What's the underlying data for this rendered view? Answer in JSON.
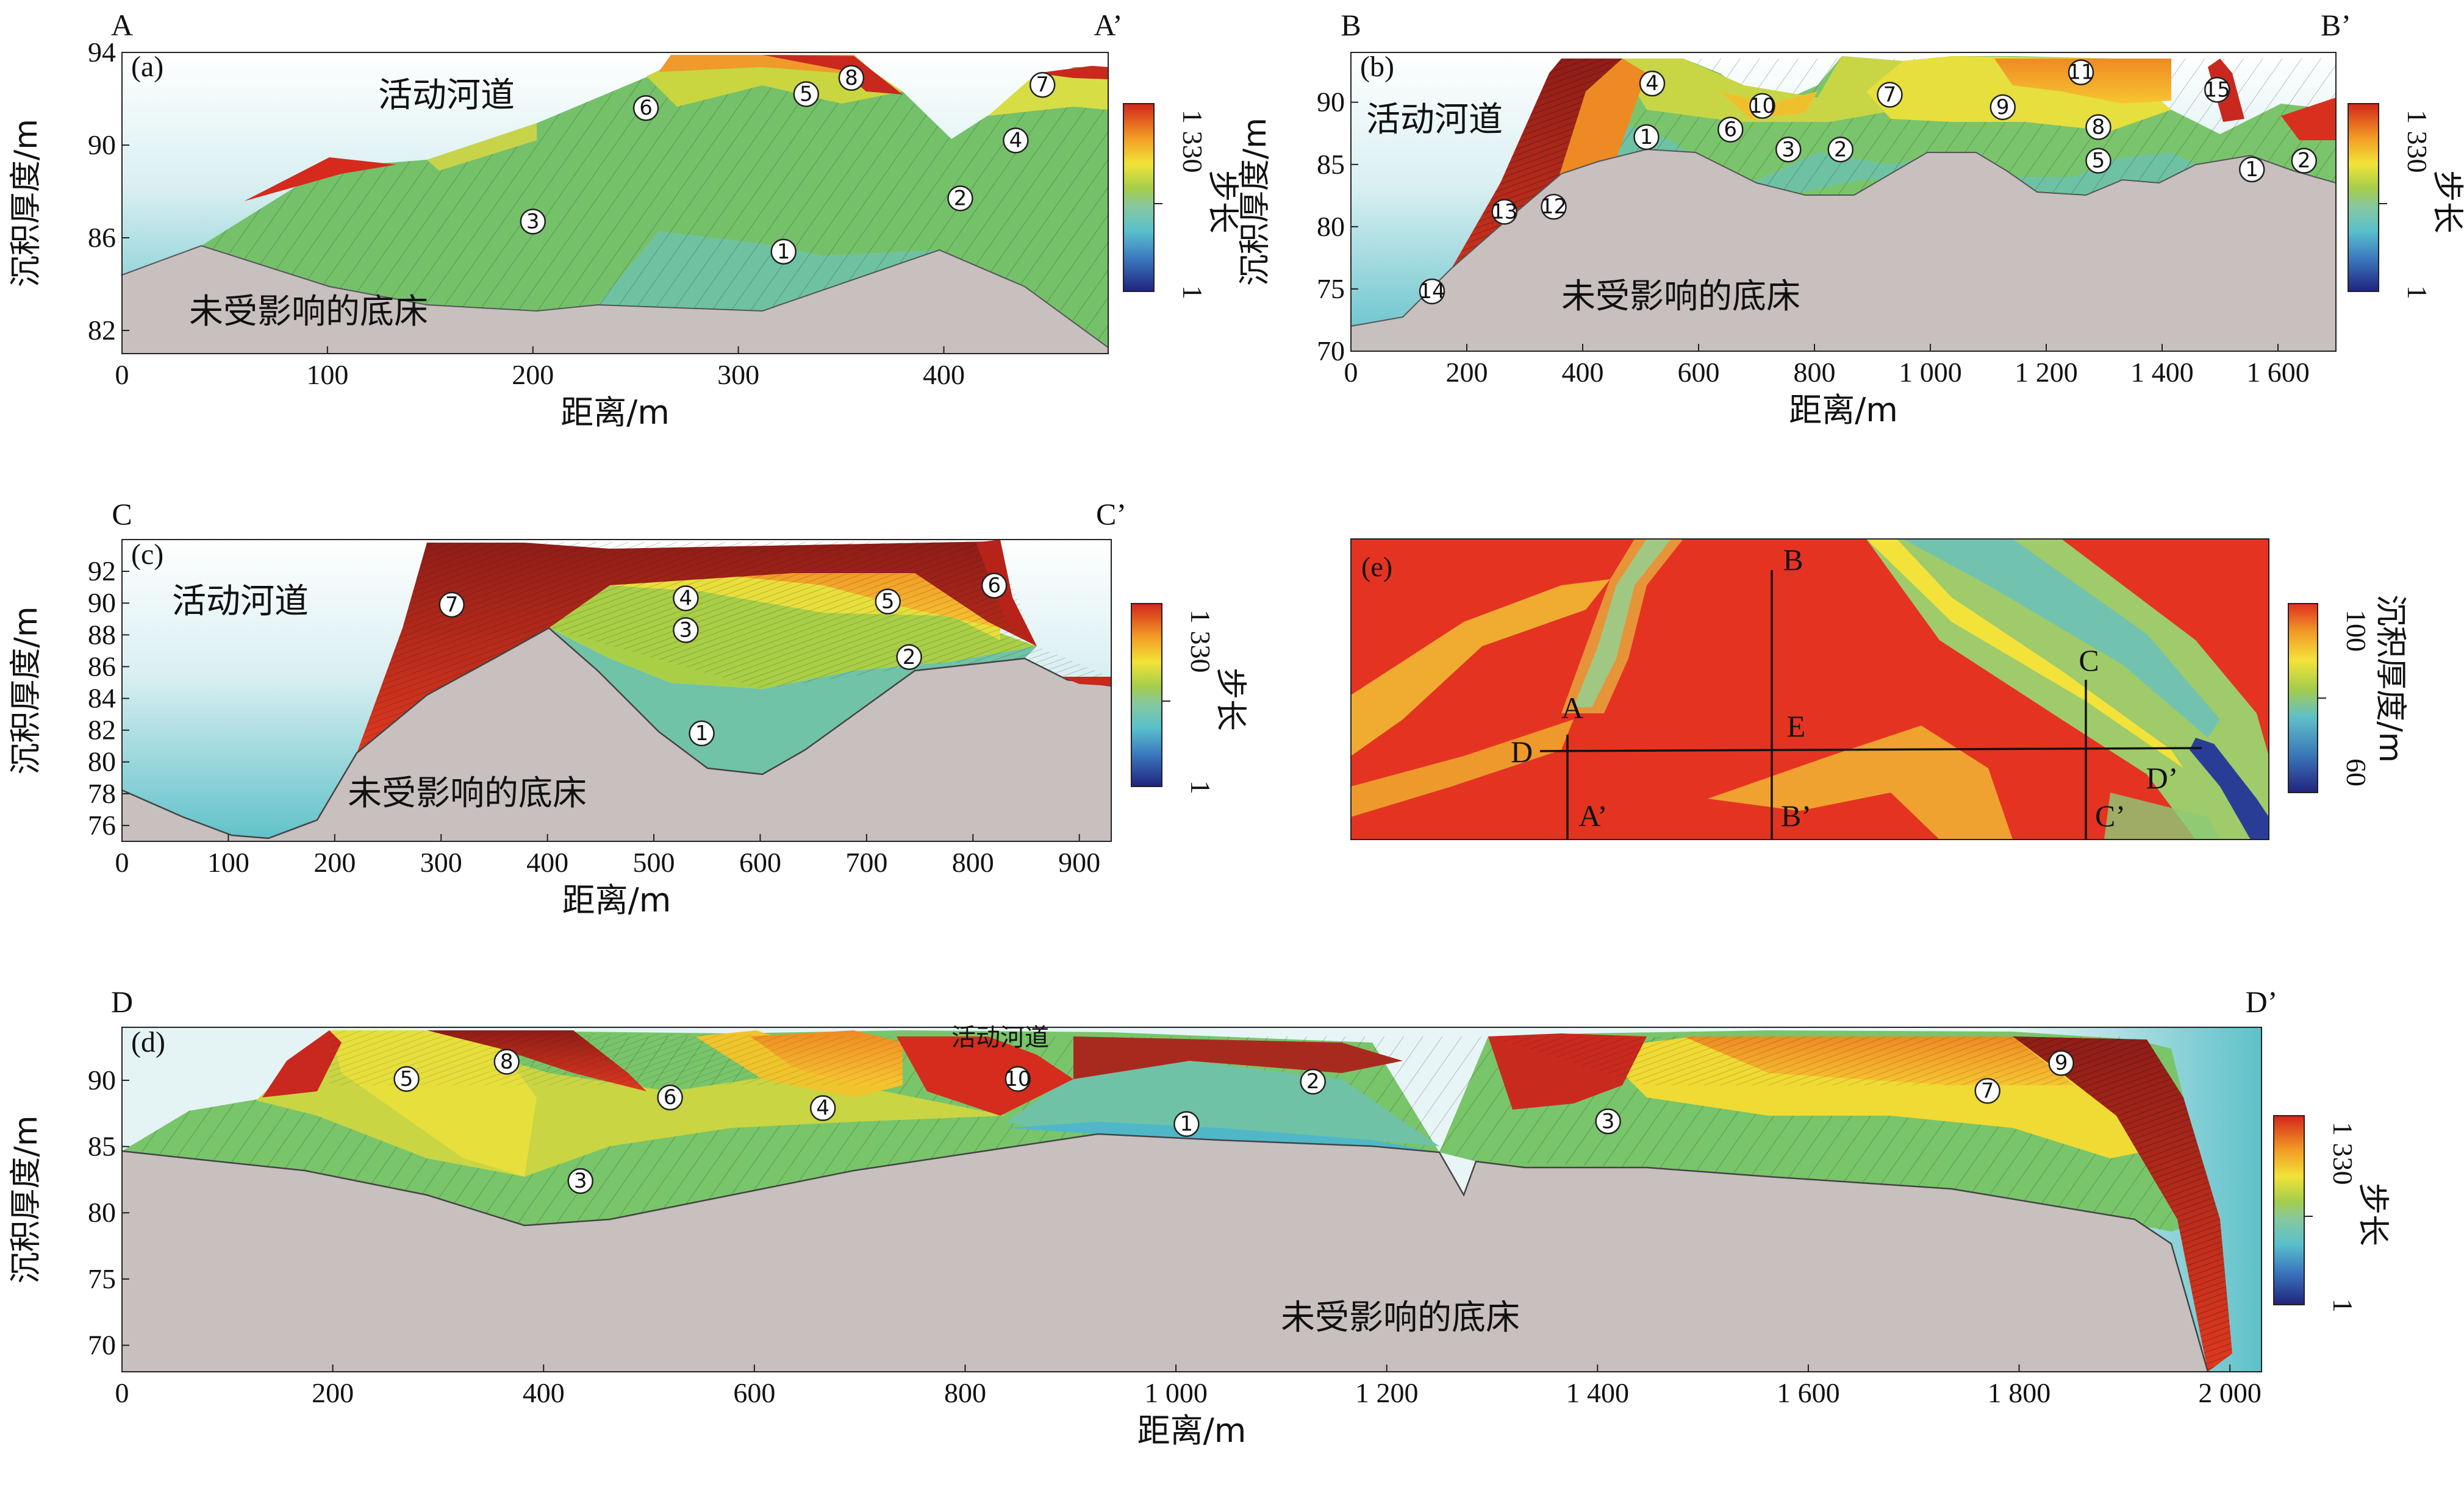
{
  "panels": {
    "a": {
      "tag": "(a)",
      "end_left": "A",
      "end_right": "A’",
      "ylabel": "沉积厚度/m",
      "xlabel": "距离/m",
      "label_channel": "活动河道",
      "label_bed": "未受影响的底床",
      "xlim": [
        0,
        480
      ],
      "ylim": [
        81,
        94
      ],
      "xticks": [
        "0",
        "100",
        "200",
        "300",
        "400"
      ],
      "xtick_values": [
        0,
        100,
        200,
        300,
        400
      ],
      "yticks": [
        "82",
        "86",
        "90",
        "94"
      ],
      "ytick_values": [
        82,
        86,
        90,
        94
      ],
      "markers": [
        {
          "n": "①",
          "x": 322,
          "y": 85.4
        },
        {
          "n": "②",
          "x": 408,
          "y": 87.7
        },
        {
          "n": "③",
          "x": 200,
          "y": 86.7
        },
        {
          "n": "④",
          "x": 435,
          "y": 90.2
        },
        {
          "n": "⑤",
          "x": 333,
          "y": 92.2
        },
        {
          "n": "⑥",
          "x": 255,
          "y": 91.6
        },
        {
          "n": "⑦",
          "x": 448,
          "y": 92.6
        },
        {
          "n": "⑧",
          "x": 355,
          "y": 92.9
        }
      ],
      "colorbar": {
        "top": "1 330",
        "bottom": "1",
        "label": "步长"
      }
    },
    "b": {
      "tag": "(b)",
      "end_left": "B",
      "end_right": "B’",
      "ylabel": "沉积厚度/m",
      "xlabel": "距离/m",
      "label_channel": "活动河道",
      "label_bed": "未受影响的底床",
      "xlim": [
        0,
        1700
      ],
      "ylim": [
        70,
        94
      ],
      "xticks": [
        "0",
        "200",
        "400",
        "600",
        "800",
        "1 000",
        "1 200",
        "1 400",
        "1 600"
      ],
      "xtick_values": [
        0,
        200,
        400,
        600,
        800,
        1000,
        1200,
        1400,
        1600
      ],
      "yticks": [
        "70",
        "75",
        "80",
        "85",
        "90"
      ],
      "ytick_values": [
        70,
        75,
        80,
        85,
        90
      ],
      "markers": [
        {
          "n": "①",
          "x": 510,
          "y": 87.2
        },
        {
          "n": "②",
          "x": 845,
          "y": 86.2
        },
        {
          "n": "③",
          "x": 755,
          "y": 86.2
        },
        {
          "n": "④",
          "x": 520,
          "y": 91.5
        },
        {
          "n": "⑤",
          "x": 1290,
          "y": 85.3
        },
        {
          "n": "⑥",
          "x": 655,
          "y": 87.8
        },
        {
          "n": "⑦",
          "x": 930,
          "y": 90.6
        },
        {
          "n": "⑧",
          "x": 1290,
          "y": 88.0
        },
        {
          "n": "⑨",
          "x": 1125,
          "y": 89.6
        },
        {
          "n": "⑩",
          "x": 710,
          "y": 89.7
        },
        {
          "n": "⑪",
          "x": 1260,
          "y": 92.4
        },
        {
          "n": "⑫",
          "x": 350,
          "y": 81.6
        },
        {
          "n": "⑬",
          "x": 265,
          "y": 81.2
        },
        {
          "n": "⑭",
          "x": 140,
          "y": 74.8
        },
        {
          "n": "⑮",
          "x": 1495,
          "y": 91.0
        },
        {
          "n": "①",
          "x": 1555,
          "y": 84.6
        },
        {
          "n": "②",
          "x": 1645,
          "y": 85.3
        }
      ],
      "colorbar": {
        "top": "1 330",
        "bottom": "1",
        "label": "步长"
      }
    },
    "c": {
      "tag": "(c)",
      "end_left": "C",
      "end_right": "C’",
      "ylabel": "沉积厚度/m",
      "xlabel": "距离/m",
      "label_channel": "活动河道",
      "label_bed": "未受影响的底床",
      "xlim": [
        0,
        930
      ],
      "ylim": [
        75,
        94
      ],
      "xticks": [
        "0",
        "100",
        "200",
        "300",
        "400",
        "500",
        "600",
        "700",
        "800",
        "900"
      ],
      "xtick_values": [
        0,
        100,
        200,
        300,
        400,
        500,
        600,
        700,
        800,
        900
      ],
      "yticks": [
        "76",
        "78",
        "80",
        "82",
        "84",
        "86",
        "88",
        "90",
        "92"
      ],
      "ytick_values": [
        76,
        78,
        80,
        82,
        84,
        86,
        88,
        90,
        92
      ],
      "markers": [
        {
          "n": "①",
          "x": 545,
          "y": 81.8
        },
        {
          "n": "②",
          "x": 740,
          "y": 86.6
        },
        {
          "n": "③",
          "x": 530,
          "y": 88.3
        },
        {
          "n": "④",
          "x": 530,
          "y": 90.3
        },
        {
          "n": "⑤",
          "x": 720,
          "y": 90.1
        },
        {
          "n": "⑥",
          "x": 820,
          "y": 91.1
        },
        {
          "n": "⑦",
          "x": 310,
          "y": 89.9
        }
      ],
      "colorbar": {
        "top": "1 330",
        "bottom": "1",
        "label": "步长"
      }
    },
    "d": {
      "tag": "(d)",
      "end_left": "D",
      "end_right": "D’",
      "ylabel": "沉积厚度/m",
      "xlabel": "距离/m",
      "label_channel": "活动河道",
      "label_bed": "未受影响的底床",
      "xlim": [
        0,
        2030
      ],
      "ylim": [
        68,
        94
      ],
      "xticks": [
        "0",
        "200",
        "400",
        "600",
        "800",
        "1 000",
        "1 200",
        "1 400",
        "1 600",
        "1 800",
        "2 000"
      ],
      "xtick_values": [
        0,
        200,
        400,
        600,
        800,
        1000,
        1200,
        1400,
        1600,
        1800,
        2000
      ],
      "yticks": [
        "70",
        "75",
        "80",
        "85",
        "90"
      ],
      "ytick_values": [
        70,
        75,
        80,
        85,
        90
      ],
      "markers": [
        {
          "n": "①",
          "x": 1010,
          "y": 86.7
        },
        {
          "n": "②",
          "x": 1130,
          "y": 89.9
        },
        {
          "n": "③",
          "x": 435,
          "y": 82.4
        },
        {
          "n": "③",
          "x": 1410,
          "y": 86.9
        },
        {
          "n": "④",
          "x": 665,
          "y": 87.9
        },
        {
          "n": "⑤",
          "x": 270,
          "y": 90.1
        },
        {
          "n": "⑥",
          "x": 520,
          "y": 88.7
        },
        {
          "n": "⑦",
          "x": 1770,
          "y": 89.2
        },
        {
          "n": "⑧",
          "x": 365,
          "y": 91.4
        },
        {
          "n": "⑨",
          "x": 1840,
          "y": 91.3
        },
        {
          "n": "⑩",
          "x": 850,
          "y": 90.1
        }
      ],
      "colorbar": {
        "top": "1 330",
        "bottom": "1",
        "label": "步长"
      }
    },
    "e": {
      "tag": "(e)",
      "letters": [
        "A",
        "A’",
        "B",
        "B’",
        "C",
        "C’",
        "D",
        "D’",
        "E"
      ],
      "colorbar": {
        "top": "100",
        "bottom": "60",
        "label": "沉积厚度/m"
      }
    }
  },
  "colors": {
    "bed": "#c8bfbf",
    "sky_top": "#ffffff",
    "sky_bottom": "#5fc1c9",
    "step_1": "#2b3a9a",
    "step_mid": "#aacc44",
    "step_max": "#d72a1e",
    "map_red": "#e53322",
    "map_yellow": "#f5e43a",
    "map_blue": "#3a78b8"
  }
}
